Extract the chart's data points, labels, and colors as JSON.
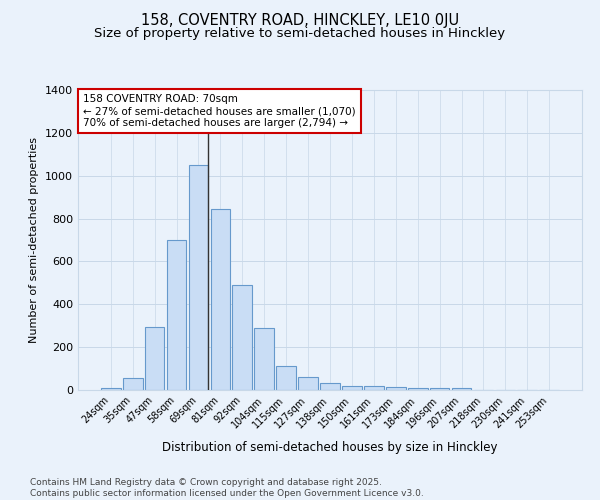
{
  "title1": "158, COVENTRY ROAD, HINCKLEY, LE10 0JU",
  "title2": "Size of property relative to semi-detached houses in Hinckley",
  "xlabel": "Distribution of semi-detached houses by size in Hinckley",
  "ylabel": "Number of semi-detached properties",
  "categories": [
    "24sqm",
    "35sqm",
    "47sqm",
    "58sqm",
    "69sqm",
    "81sqm",
    "92sqm",
    "104sqm",
    "115sqm",
    "127sqm",
    "138sqm",
    "150sqm",
    "161sqm",
    "173sqm",
    "184sqm",
    "196sqm",
    "207sqm",
    "218sqm",
    "230sqm",
    "241sqm",
    "253sqm"
  ],
  "values": [
    8,
    58,
    295,
    700,
    1050,
    845,
    490,
    290,
    110,
    62,
    35,
    20,
    18,
    12,
    10,
    8,
    8,
    0,
    0,
    0,
    0
  ],
  "bar_color": "#c9ddf5",
  "bar_edge_color": "#6699cc",
  "vline_index": 4,
  "vline_color": "#333333",
  "annotation_text": "158 COVENTRY ROAD: 70sqm\n← 27% of semi-detached houses are smaller (1,070)\n70% of semi-detached houses are larger (2,794) →",
  "annotation_box_color": "#ffffff",
  "annotation_box_edge": "#cc0000",
  "ylim": [
    0,
    1400
  ],
  "yticks": [
    0,
    200,
    400,
    600,
    800,
    1000,
    1200,
    1400
  ],
  "grid_color": "#c8d8e8",
  "bg_color": "#eaf2fb",
  "footer": "Contains HM Land Registry data © Crown copyright and database right 2025.\nContains public sector information licensed under the Open Government Licence v3.0.",
  "title_fontsize": 10.5,
  "subtitle_fontsize": 9.5
}
